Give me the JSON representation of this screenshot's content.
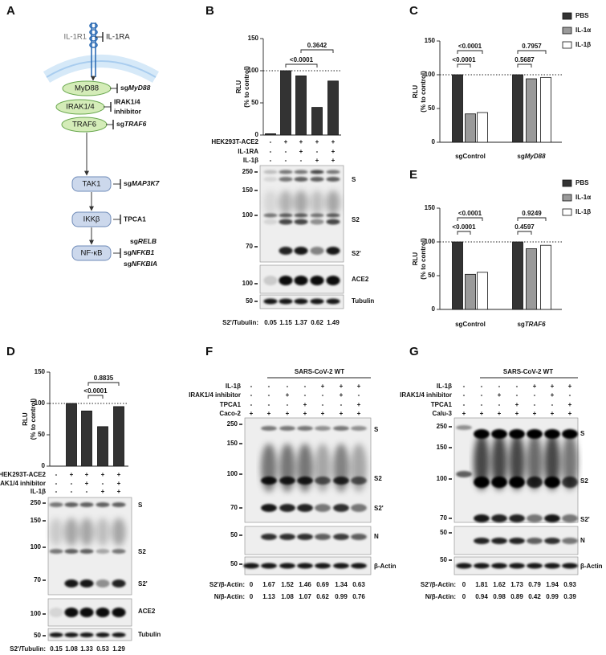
{
  "panel_a": {
    "letter": "A",
    "receptor": "IL-1R1",
    "receptor_blocker": "IL-1RA",
    "nodes": [
      "MyD88",
      "IRAK1/4",
      "TRAF6",
      "TAK1",
      "IKKβ",
      "NF-κB"
    ],
    "blockers": {
      "myd88": {
        "prefix": "sg",
        "gene": "MyD88"
      },
      "irak": [
        "IRAK1/4",
        "inhibitor"
      ],
      "traf6": {
        "prefix": "sg",
        "gene": "TRAF6"
      },
      "tak1": {
        "prefix": "sg",
        "gene": "MAP3K7"
      },
      "ikk": "TPCA1",
      "nfkb": [
        {
          "prefix": "sg",
          "gene": "RELB"
        },
        {
          "prefix": "sg",
          "gene": "NFKB1"
        },
        {
          "prefix": "sg",
          "gene": "NFKBIA"
        }
      ]
    }
  },
  "panel_b": {
    "letter": "B",
    "chart": {
      "type": "bar",
      "ylabel": [
        "RLU",
        "(% to control)"
      ],
      "ylim": [
        0,
        150
      ],
      "yticks": [
        0,
        50,
        100,
        150
      ],
      "reference": 100,
      "color": "#333333",
      "values": [
        2,
        100,
        92,
        43,
        84
      ],
      "comparisons": [
        "<0.0001",
        "0.3642"
      ]
    },
    "conditions": [
      {
        "label": "HEK293T-ACE2",
        "signs": [
          "-",
          "+",
          "+",
          "+",
          "+"
        ]
      },
      {
        "label": "IL-1RA",
        "signs": [
          "-",
          "-",
          "+",
          "-",
          "+"
        ]
      },
      {
        "label": "IL-1β",
        "signs": [
          "-",
          "-",
          "-",
          "+",
          "+"
        ]
      }
    ],
    "blot": {
      "markers": [
        250,
        150,
        100,
        70,
        100,
        50
      ],
      "bands": [
        "S",
        "S2",
        "S2'",
        "ACE2",
        "Tubulin"
      ]
    },
    "quant": [
      {
        "label": "S2'/Tubulin:",
        "values": [
          0.05,
          1.15,
          1.37,
          0.62,
          1.49
        ]
      }
    ]
  },
  "panel_c": {
    "letter": "C",
    "chart": {
      "type": "grouped_bar",
      "ylabel": [
        "RLU",
        "(% to control)"
      ],
      "ylim": [
        0,
        150
      ],
      "yticks": [
        0,
        50,
        100,
        150
      ],
      "reference": 100,
      "groups": [
        "sgControl",
        {
          "prefix": "sg",
          "gene": "MyD88"
        }
      ],
      "series": [
        {
          "name": "PBS",
          "color": "#333333",
          "values": [
            100,
            100
          ]
        },
        {
          "name": "IL-1α",
          "color": "#9a9a9a",
          "values": [
            42,
            94
          ]
        },
        {
          "name": "IL-1β",
          "color": "#ffffff",
          "values": [
            44,
            96
          ]
        }
      ],
      "comparisons": [
        "<0.0001",
        "<0.0001",
        "0.5687",
        "0.7957"
      ]
    }
  },
  "panel_e": {
    "letter": "E",
    "chart": {
      "type": "grouped_bar",
      "ylabel": [
        "RLU",
        "(% to control)"
      ],
      "ylim": [
        0,
        150
      ],
      "yticks": [
        0,
        50,
        100,
        150
      ],
      "reference": 100,
      "groups": [
        "sgControl",
        {
          "prefix": "sg",
          "gene": "TRAF6"
        }
      ],
      "series": [
        {
          "name": "PBS",
          "color": "#333333",
          "values": [
            100,
            100
          ]
        },
        {
          "name": "IL-1α",
          "color": "#9a9a9a",
          "values": [
            52,
            90
          ]
        },
        {
          "name": "IL-1β",
          "color": "#ffffff",
          "values": [
            55,
            95
          ]
        }
      ],
      "comparisons": [
        "<0.0001",
        "<0.0001",
        "0.4597",
        "0.9249"
      ]
    }
  },
  "panel_d": {
    "letter": "D",
    "chart": {
      "type": "bar",
      "ylabel": [
        "RLU",
        "(% to control)"
      ],
      "ylim": [
        0,
        150
      ],
      "yticks": [
        0,
        50,
        100,
        150
      ],
      "reference": 100,
      "color": "#333333",
      "values": [
        0,
        100,
        88,
        63,
        95
      ],
      "comparisons": [
        "<0.0001",
        "0.8835"
      ]
    },
    "conditions": [
      {
        "label": "HEK293T-ACE2",
        "signs": [
          "-",
          "+",
          "+",
          "+",
          "+"
        ]
      },
      {
        "label": "IRAK1/4 inhibitor",
        "signs": [
          "-",
          "-",
          "+",
          "-",
          "+"
        ]
      },
      {
        "label": "IL-1β",
        "signs": [
          "-",
          "-",
          "-",
          "+",
          "+"
        ]
      }
    ],
    "blot": {
      "markers": [
        250,
        150,
        100,
        70,
        100,
        50
      ],
      "bands": [
        "S",
        "S2",
        "S2'",
        "ACE2",
        "Tubulin"
      ]
    },
    "quant": [
      {
        "label": "S2'/Tubulin:",
        "values": [
          0.15,
          1.08,
          1.33,
          0.53,
          1.29
        ]
      }
    ]
  },
  "panel_f": {
    "letter": "F",
    "header": "SARS-CoV-2 WT",
    "conditions": [
      {
        "label": "IL-1β",
        "signs": [
          "-",
          "-",
          "-",
          "-",
          "+",
          "+",
          "+"
        ]
      },
      {
        "label": "IRAK1/4 inhibitor",
        "signs": [
          "-",
          "-",
          "+",
          "-",
          "-",
          "+",
          "-"
        ]
      },
      {
        "label": "TPCA1",
        "signs": [
          "-",
          "-",
          "-",
          "+",
          "-",
          "-",
          "+"
        ]
      },
      {
        "label": "Caco-2",
        "signs": [
          "+",
          "+",
          "+",
          "+",
          "+",
          "+",
          "+"
        ]
      }
    ],
    "blot": {
      "markers": [
        250,
        150,
        100,
        70,
        50,
        50
      ],
      "bands": [
        "S",
        "S2",
        "S2'",
        "N",
        "β-Actin"
      ]
    },
    "quant": [
      {
        "label": "S2'/β-Actin:",
        "values": [
          0,
          1.67,
          1.52,
          1.46,
          0.69,
          1.34,
          0.63
        ]
      },
      {
        "label": "N/β-Actin:",
        "values": [
          0,
          1.13,
          1.08,
          1.07,
          0.62,
          0.99,
          0.76
        ]
      }
    ]
  },
  "panel_g": {
    "letter": "G",
    "header": "SARS-CoV-2 WT",
    "conditions": [
      {
        "label": "IL-1β",
        "signs": [
          "-",
          "-",
          "-",
          "-",
          "+",
          "+",
          "+"
        ]
      },
      {
        "label": "IRAK1/4 inhibitor",
        "signs": [
          "-",
          "-",
          "+",
          "-",
          "-",
          "+",
          "-"
        ]
      },
      {
        "label": "TPCA1",
        "signs": [
          "-",
          "-",
          "-",
          "+",
          "-",
          "-",
          "+"
        ]
      },
      {
        "label": "Calu-3",
        "signs": [
          "+",
          "+",
          "+",
          "+",
          "+",
          "+",
          "+"
        ]
      }
    ],
    "blot": {
      "markers": [
        250,
        150,
        100,
        70,
        50,
        50
      ],
      "bands": [
        "S",
        "S2",
        "S2'",
        "N",
        "β-Actin"
      ]
    },
    "quant": [
      {
        "label": "S2'/β-Actin:",
        "values": [
          0,
          1.81,
          1.62,
          1.73,
          0.79,
          1.94,
          0.93
        ]
      },
      {
        "label": "N/β-Actin:",
        "values": [
          0,
          0.94,
          0.98,
          0.89,
          0.42,
          0.99,
          0.39
        ]
      }
    ]
  }
}
